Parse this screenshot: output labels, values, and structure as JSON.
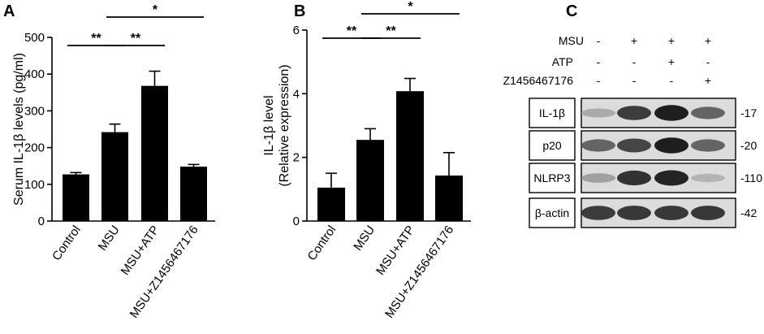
{
  "panels": [
    {
      "letter": "A"
    },
    {
      "letter": "B"
    },
    {
      "letter": "C"
    }
  ],
  "chart_data": [
    {
      "type": "bar",
      "panel": "A",
      "categories": [
        "Control",
        "MSU",
        "MSU+ATP",
        "MSU+Z1456467176"
      ],
      "values": [
        127,
        242,
        368,
        148
      ],
      "errors": [
        5,
        22,
        40,
        6
      ],
      "ylabel": "Serum IL-1β levels (pg/ml)",
      "ylabel_lines": [
        "Serum IL-1β levels (pg/ml)"
      ],
      "ylim": [
        0,
        500
      ],
      "yticks": [
        0,
        100,
        200,
        300,
        400,
        500
      ],
      "bar_color": "#000000",
      "significance": [
        {
          "from": 0,
          "to": 1,
          "label": "**",
          "level": 1
        },
        {
          "from": 1,
          "to": 2,
          "label": "**",
          "level": 1
        },
        {
          "from": 1,
          "to": 3,
          "label": "*",
          "level": 2
        }
      ]
    },
    {
      "type": "bar",
      "panel": "B",
      "categories": [
        "Control",
        "MSU",
        "MSU+ATP",
        "MSU+Z1456467176"
      ],
      "values": [
        1.05,
        2.55,
        4.08,
        1.43
      ],
      "errors": [
        0.45,
        0.35,
        0.4,
        0.72
      ],
      "ylabel": "IL-1β level (Relative expression)",
      "ylabel_lines": [
        "IL-1β level",
        "(Relative expression)"
      ],
      "ylim": [
        0,
        6
      ],
      "yticks": [
        0,
        2,
        4,
        6
      ],
      "bar_color": "#000000",
      "significance": [
        {
          "from": 0,
          "to": 1,
          "label": "**",
          "level": 1
        },
        {
          "from": 1,
          "to": 2,
          "label": "**",
          "level": 1
        },
        {
          "from": 1,
          "to": 3,
          "label": "*",
          "level": 2
        }
      ]
    }
  ],
  "blot": {
    "conditions": [
      {
        "label": "MSU",
        "values": [
          "-",
          "+",
          "+",
          "+"
        ]
      },
      {
        "label": "ATP",
        "values": [
          "-",
          "-",
          "+",
          "-"
        ]
      },
      {
        "label": "Z1456467176",
        "values": [
          "-",
          "-",
          "-",
          "+"
        ]
      }
    ],
    "rows": [
      {
        "label": "IL-1β",
        "kda": "-17",
        "intensity": [
          0.25,
          0.8,
          0.95,
          0.6
        ]
      },
      {
        "label": "p20",
        "kda": "-20",
        "intensity": [
          0.6,
          0.75,
          0.95,
          0.6
        ]
      },
      {
        "label": "NLRP3",
        "kda": "-110",
        "intensity": [
          0.3,
          0.85,
          0.92,
          0.2
        ]
      },
      {
        "label": "β-actin",
        "kda": "-42",
        "intensity": [
          0.8,
          0.82,
          0.82,
          0.82
        ]
      }
    ]
  }
}
